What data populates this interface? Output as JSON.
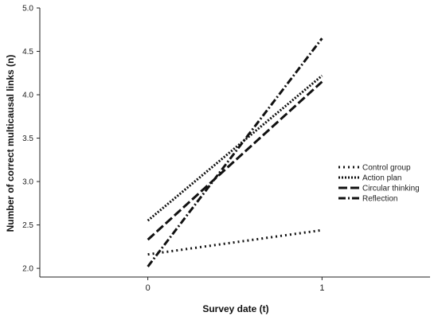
{
  "chart_data": {
    "type": "line",
    "title": "",
    "xlabel": "Survey date (t)",
    "ylabel": "Number of correct multicausal links (n)",
    "x": [
      0,
      1
    ],
    "x_tick_labels": [
      "0",
      "1"
    ],
    "xlim": [
      -0.62,
      1.62
    ],
    "ylim": [
      1.9,
      5.0
    ],
    "y_ticks": [
      "2.0",
      "2.5",
      "3.0",
      "3.5",
      "4.0",
      "4.5",
      "5.0"
    ],
    "grid": false,
    "legend_position": "right",
    "series": [
      {
        "name": "Control group",
        "values": [
          2.16,
          2.44
        ],
        "line_style": "dotted-sparse",
        "color": "#111111"
      },
      {
        "name": "Action plan",
        "values": [
          2.55,
          4.22
        ],
        "line_style": "dotted-dense",
        "color": "#111111"
      },
      {
        "name": "Circular thinking",
        "values": [
          2.33,
          4.15
        ],
        "line_style": "dashed",
        "color": "#111111"
      },
      {
        "name": "Reflection",
        "values": [
          2.02,
          4.65
        ],
        "line_style": "dash-dot",
        "color": "#111111"
      }
    ]
  }
}
